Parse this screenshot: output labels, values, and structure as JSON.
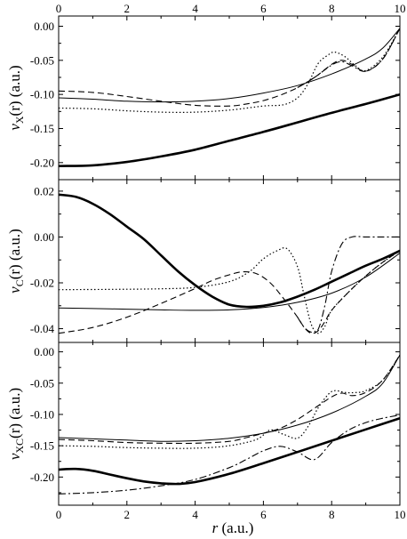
{
  "chart_data": {
    "type": "line",
    "shared_x": {
      "label_var": "r",
      "label_unit": " (a.u.)",
      "range": [
        0,
        10
      ],
      "ticks": [
        0,
        2,
        4,
        6,
        8,
        10
      ],
      "tick_labels": [
        "0",
        "2",
        "4",
        "6",
        "8",
        "10"
      ],
      "top_tick_labels": true
    },
    "grid": false,
    "legend": "none",
    "panels": [
      {
        "ylabel_main": "v",
        "ylabel_sub": "X",
        "ylabel_tail": "(r) (a.u.)",
        "ylim": [
          -0.225,
          0.015
        ],
        "yticks": [
          0.0,
          -0.05,
          -0.1,
          -0.15,
          -0.2
        ],
        "ytick_labels": [
          "0.00",
          "-0.05",
          "-0.10",
          "-0.15",
          "-0.20"
        ],
        "series": [
          {
            "style": "thick",
            "x": [
              0,
              1,
              2,
              3,
              4,
              5,
              6,
              7,
              8,
              9,
              10
            ],
            "y": [
              -0.205,
              -0.204,
              -0.199,
              -0.191,
              -0.181,
              -0.168,
              -0.155,
              -0.141,
              -0.127,
              -0.114,
              -0.1
            ]
          },
          {
            "style": "thin",
            "x": [
              0,
              1,
              2,
              3,
              4,
              5,
              6,
              7,
              8,
              9,
              9.5,
              10
            ],
            "y": [
              -0.105,
              -0.107,
              -0.11,
              -0.111,
              -0.11,
              -0.106,
              -0.098,
              -0.087,
              -0.07,
              -0.048,
              -0.032,
              -0.003
            ]
          },
          {
            "style": "dashed",
            "x": [
              0,
              1,
              2,
              3,
              4,
              5,
              5.5,
              6,
              6.5,
              7,
              7.5,
              8,
              8.3,
              8.6,
              9,
              9.5,
              10
            ],
            "y": [
              -0.095,
              -0.097,
              -0.103,
              -0.11,
              -0.116,
              -0.117,
              -0.114,
              -0.109,
              -0.101,
              -0.09,
              -0.075,
              -0.056,
              -0.05,
              -0.056,
              -0.066,
              -0.048,
              -0.003
            ]
          },
          {
            "style": "dotted",
            "x": [
              0,
              1,
              2,
              3,
              4,
              5,
              6,
              6.6,
              7,
              7.3,
              7.6,
              7.9,
              8.1,
              8.4,
              8.7,
              9,
              9.5,
              10
            ],
            "y": [
              -0.12,
              -0.121,
              -0.124,
              -0.126,
              -0.126,
              -0.123,
              -0.117,
              -0.115,
              -0.105,
              -0.085,
              -0.055,
              -0.042,
              -0.038,
              -0.045,
              -0.058,
              -0.065,
              -0.045,
              -0.003
            ]
          },
          {
            "style": "dashdot",
            "x": [
              7,
              7.5,
              8,
              8.3,
              8.6,
              9,
              9.5,
              10
            ],
            "y": [
              -0.09,
              -0.075,
              -0.057,
              -0.052,
              -0.058,
              -0.066,
              -0.048,
              -0.003
            ]
          }
        ]
      },
      {
        "ylabel_main": "v",
        "ylabel_sub": "C",
        "ylabel_tail": "(r) (a.u.)",
        "ylim": [
          -0.046,
          0.025
        ],
        "yticks": [
          0.02,
          0.0,
          -0.02,
          -0.04
        ],
        "ytick_labels": [
          "0.02",
          "0.00",
          "-0.02",
          "-0.04"
        ],
        "series": [
          {
            "style": "thick",
            "x": [
              0,
              0.5,
              1,
              1.5,
              2,
              2.5,
              3,
              3.5,
              4,
              4.5,
              5,
              5.5,
              6,
              6.5,
              7,
              7.5,
              8,
              8.5,
              9,
              9.5,
              10
            ],
            "y": [
              0.0185,
              0.0175,
              0.0145,
              0.01,
              0.0045,
              -0.001,
              -0.008,
              -0.015,
              -0.021,
              -0.026,
              -0.0295,
              -0.0305,
              -0.03,
              -0.0285,
              -0.026,
              -0.023,
              -0.0195,
              -0.016,
              -0.0125,
              -0.0095,
              -0.006
            ]
          },
          {
            "style": "thin",
            "x": [
              0,
              1,
              2,
              3,
              4,
              5,
              6,
              7,
              8,
              9,
              10
            ],
            "y": [
              -0.031,
              -0.0312,
              -0.0315,
              -0.0318,
              -0.032,
              -0.0318,
              -0.0308,
              -0.0285,
              -0.0245,
              -0.0175,
              -0.007
            ]
          },
          {
            "style": "dashed",
            "x": [
              0,
              1,
              2,
              3,
              4,
              4.5,
              5,
              5.4,
              5.8,
              6.2,
              6.6,
              7,
              7.2,
              7.4,
              7.6,
              7.8,
              8,
              8.5,
              9,
              9.5,
              10
            ],
            "y": [
              -0.042,
              -0.0395,
              -0.035,
              -0.029,
              -0.0225,
              -0.019,
              -0.0165,
              -0.0152,
              -0.016,
              -0.02,
              -0.027,
              -0.035,
              -0.0395,
              -0.042,
              -0.041,
              -0.037,
              -0.032,
              -0.024,
              -0.017,
              -0.011,
              -0.006
            ]
          },
          {
            "style": "dotted",
            "x": [
              0,
              1,
              2,
              3,
              4,
              5,
              5.6,
              6,
              6.4,
              6.7,
              7,
              7.2,
              7.4,
              7.6,
              7.8,
              8,
              8.5,
              9,
              9.5,
              10
            ],
            "y": [
              -0.023,
              -0.0229,
              -0.0228,
              -0.0226,
              -0.022,
              -0.0195,
              -0.015,
              -0.0095,
              -0.006,
              -0.0052,
              -0.013,
              -0.026,
              -0.038,
              -0.042,
              -0.039,
              -0.032,
              -0.024,
              -0.017,
              -0.011,
              -0.006
            ]
          },
          {
            "style": "dashdot",
            "x": [
              7,
              7.2,
              7.4,
              7.6,
              7.8,
              8,
              8.3,
              8.6,
              9,
              9.5,
              10
            ],
            "y": [
              -0.035,
              -0.0395,
              -0.0415,
              -0.0405,
              -0.03,
              -0.015,
              -0.003,
              0.0,
              0.0,
              0.0,
              0.0
            ]
          }
        ]
      },
      {
        "ylabel_main": "v",
        "ylabel_sub": "XC",
        "ylabel_tail": "(r) (a.u.)",
        "ylim": [
          -0.245,
          0.015
        ],
        "yticks": [
          0.0,
          -0.05,
          -0.1,
          -0.15,
          -0.2
        ],
        "ytick_labels": [
          "0.00",
          "-0.05",
          "-0.10",
          "-0.15",
          "-0.20"
        ],
        "series": [
          {
            "style": "thick",
            "x": [
              0,
              0.5,
              1,
              1.5,
              2,
              2.5,
              3,
              3.5,
              4,
              5,
              6,
              7,
              8,
              9,
              10
            ],
            "y": [
              -0.188,
              -0.187,
              -0.19,
              -0.196,
              -0.202,
              -0.207,
              -0.21,
              -0.211,
              -0.208,
              -0.195,
              -0.178,
              -0.16,
              -0.142,
              -0.124,
              -0.106
            ]
          },
          {
            "style": "thin",
            "x": [
              0,
              1,
              2,
              3,
              4,
              5,
              6,
              7,
              8,
              9,
              9.5,
              10
            ],
            "y": [
              -0.137,
              -0.139,
              -0.141,
              -0.143,
              -0.142,
              -0.138,
              -0.13,
              -0.117,
              -0.098,
              -0.071,
              -0.05,
              -0.005
            ]
          },
          {
            "style": "dashed",
            "x": [
              0,
              1,
              2,
              3,
              4,
              5,
              5.5,
              6,
              6.5,
              7,
              7.5,
              8,
              8.3,
              8.6,
              9,
              9.5,
              10
            ],
            "y": [
              -0.14,
              -0.142,
              -0.145,
              -0.146,
              -0.146,
              -0.143,
              -0.137,
              -0.13,
              -0.122,
              -0.108,
              -0.09,
              -0.072,
              -0.066,
              -0.07,
              -0.065,
              -0.045,
              -0.005
            ]
          },
          {
            "style": "dotted",
            "x": [
              0,
              1,
              2,
              3,
              4,
              5,
              5.8,
              6.2,
              6.6,
              7,
              7.3,
              7.6,
              7.9,
              8.1,
              8.4,
              8.7,
              9,
              9.5,
              10
            ],
            "y": [
              -0.15,
              -0.151,
              -0.153,
              -0.154,
              -0.154,
              -0.15,
              -0.14,
              -0.125,
              -0.132,
              -0.138,
              -0.12,
              -0.09,
              -0.068,
              -0.062,
              -0.065,
              -0.065,
              -0.062,
              -0.045,
              -0.005
            ]
          },
          {
            "style": "dashdot",
            "x": [
              0,
              1,
              2,
              3,
              4,
              5,
              5.5,
              6,
              6.5,
              7,
              7.5,
              8,
              8.5,
              9,
              9.5,
              10
            ],
            "y": [
              -0.227,
              -0.225,
              -0.221,
              -0.214,
              -0.204,
              -0.185,
              -0.172,
              -0.158,
              -0.151,
              -0.16,
              -0.172,
              -0.145,
              -0.125,
              -0.113,
              -0.106,
              -0.101
            ]
          }
        ]
      }
    ]
  }
}
